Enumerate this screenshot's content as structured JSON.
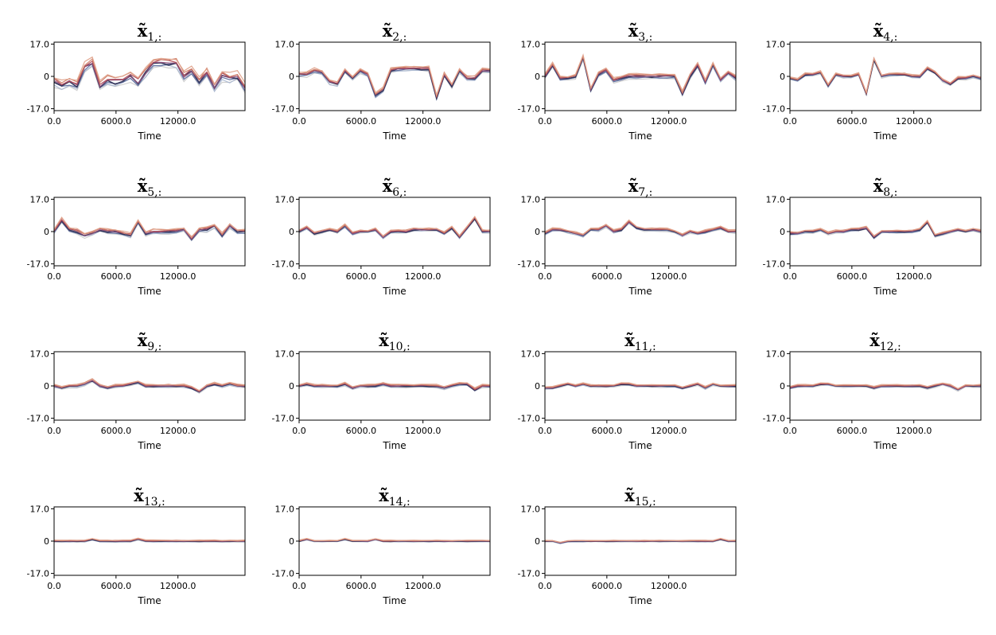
{
  "chart_data": {
    "type": "line",
    "x_label": "Time",
    "x_ticks": [
      0,
      6000,
      12000
    ],
    "x_tick_labels": [
      "0.0",
      "6000.0",
      "12000.0"
    ],
    "x_range": [
      0,
      18500
    ],
    "y_ticks": [
      -17,
      0,
      17
    ],
    "y_tick_labels": [
      "-17.0",
      "0",
      "17.0"
    ],
    "y_range": [
      -18,
      18
    ],
    "grid": false,
    "legend": "none",
    "series_colors": [
      "#c8c8c8",
      "#a4b4cf",
      "#5f6f9f",
      "#2e2f55",
      "#8e4f79",
      "#b04a55",
      "#cf7d66",
      "#e0a38c"
    ],
    "x": [
      0,
      740,
      1480,
      2220,
      2960,
      3700,
      4440,
      5180,
      5920,
      6660,
      7400,
      8140,
      8880,
      9620,
      10360,
      11100,
      11840,
      12580,
      13320,
      14060,
      14800,
      15540,
      16280,
      17020,
      17760,
      18500
    ],
    "panels": [
      {
        "title_main": "x̃",
        "title_sub": "1,:",
        "base": [
          -3,
          -5,
          -3,
          -5,
          5,
          7,
          -5,
          -2,
          -3,
          -2,
          0,
          -3,
          2,
          7,
          7,
          7,
          7,
          0,
          3,
          -3,
          2,
          -6,
          0,
          -1,
          0,
          -6
        ],
        "spread": 3.0
      },
      {
        "title_main": "x̃",
        "title_sub": "2,:",
        "base": [
          1,
          1,
          3,
          2,
          -3,
          -4,
          3,
          -1,
          3,
          1,
          -10,
          -7,
          3,
          4,
          4,
          4,
          4,
          4,
          -11,
          1,
          -5,
          3,
          -1,
          -1,
          3,
          3
        ],
        "spread": 1.5
      },
      {
        "title_main": "x̃",
        "title_sub": "3,:",
        "base": [
          0,
          6,
          -1,
          -1,
          0,
          10,
          -7,
          1,
          3,
          -2,
          -1,
          0,
          0,
          0,
          0,
          0,
          0,
          0,
          -9,
          0,
          6,
          -3,
          6,
          -2,
          2,
          -1
        ],
        "spread": 1.5
      },
      {
        "title_main": "x̃",
        "title_sub": "4,:",
        "base": [
          -1,
          -2,
          1,
          1,
          2,
          -5,
          1,
          0,
          0,
          1,
          -9,
          9,
          0,
          1,
          1,
          1,
          0,
          0,
          4,
          2,
          -2,
          -4,
          -1,
          -1,
          0,
          -1
        ],
        "spread": 1.0
      },
      {
        "title_main": "x̃",
        "title_sub": "5,:",
        "base": [
          0,
          6,
          1,
          0,
          -2,
          -1,
          1,
          0,
          0,
          -1,
          -2,
          5,
          -1,
          0,
          0,
          0,
          0,
          1,
          -4,
          1,
          1,
          3,
          -2,
          3,
          0,
          0
        ],
        "spread": 1.5
      },
      {
        "title_main": "x̃",
        "title_sub": "6,:",
        "base": [
          0,
          2,
          -1,
          0,
          1,
          0,
          3,
          -1,
          0,
          0,
          1,
          -3,
          0,
          0,
          0,
          1,
          1,
          1,
          1,
          -1,
          2,
          -3,
          2,
          7,
          0,
          0
        ],
        "spread": 1.0
      },
      {
        "title_main": "x̃",
        "title_sub": "7,:",
        "base": [
          -1,
          1,
          1,
          0,
          -1,
          -2,
          1,
          1,
          3,
          0,
          1,
          5,
          2,
          1,
          1,
          1,
          1,
          0,
          -2,
          0,
          -1,
          0,
          1,
          2,
          0,
          0
        ],
        "spread": 1.0
      },
      {
        "title_main": "x̃",
        "title_sub": "8,:",
        "base": [
          -1,
          -1,
          0,
          0,
          1,
          -1,
          0,
          0,
          1,
          1,
          2,
          -3,
          0,
          0,
          0,
          0,
          0,
          1,
          5,
          -2,
          -1,
          0,
          1,
          0,
          1,
          0
        ],
        "spread": 1.0
      },
      {
        "title_main": "x̃",
        "title_sub": "9,:",
        "base": [
          0,
          -1,
          0,
          0,
          1,
          3,
          0,
          -1,
          0,
          0,
          1,
          2,
          0,
          0,
          0,
          0,
          0,
          0,
          -1,
          -3,
          0,
          1,
          0,
          1,
          0,
          0
        ],
        "spread": 1.0
      },
      {
        "title_main": "x̃",
        "title_sub": "10,:",
        "base": [
          0,
          1,
          0,
          0,
          0,
          0,
          1,
          -1,
          0,
          0,
          0,
          1,
          0,
          0,
          0,
          0,
          0,
          0,
          0,
          -1,
          0,
          1,
          1,
          -2,
          0,
          0
        ],
        "spread": 1.0
      },
      {
        "title_main": "x̃",
        "title_sub": "11,:",
        "base": [
          -1,
          -1,
          0,
          1,
          0,
          1,
          0,
          0,
          0,
          0,
          1,
          1,
          0,
          0,
          0,
          0,
          0,
          0,
          -1,
          0,
          1,
          -1,
          1,
          0,
          0,
          0
        ],
        "spread": 0.8
      },
      {
        "title_main": "x̃",
        "title_sub": "12,:",
        "base": [
          -1,
          0,
          0,
          0,
          1,
          1,
          0,
          0,
          0,
          0,
          0,
          -1,
          0,
          0,
          0,
          0,
          0,
          0,
          -1,
          0,
          1,
          0,
          -2,
          0,
          0,
          0
        ],
        "spread": 0.8
      },
      {
        "title_main": "x̃",
        "title_sub": "13,:",
        "base": [
          0,
          0,
          0,
          0,
          0,
          1,
          0,
          0,
          0,
          0,
          0,
          1,
          0,
          0,
          0,
          0,
          0,
          0,
          0,
          0,
          0,
          0,
          0,
          0,
          0,
          0
        ],
        "spread": 0.6
      },
      {
        "title_main": "x̃",
        "title_sub": "14,:",
        "base": [
          0,
          1,
          0,
          0,
          0,
          0,
          1,
          0,
          0,
          0,
          1,
          0,
          0,
          0,
          0,
          0,
          0,
          0,
          0,
          0,
          0,
          0,
          0,
          0,
          0,
          0
        ],
        "spread": 0.5
      },
      {
        "title_main": "x̃",
        "title_sub": "15,:",
        "base": [
          0,
          0,
          -1,
          0,
          0,
          0,
          0,
          0,
          0,
          0,
          0,
          0,
          0,
          0,
          0,
          0,
          0,
          0,
          0,
          0,
          0,
          0,
          0,
          1,
          0,
          0
        ],
        "spread": 0.5
      }
    ]
  }
}
